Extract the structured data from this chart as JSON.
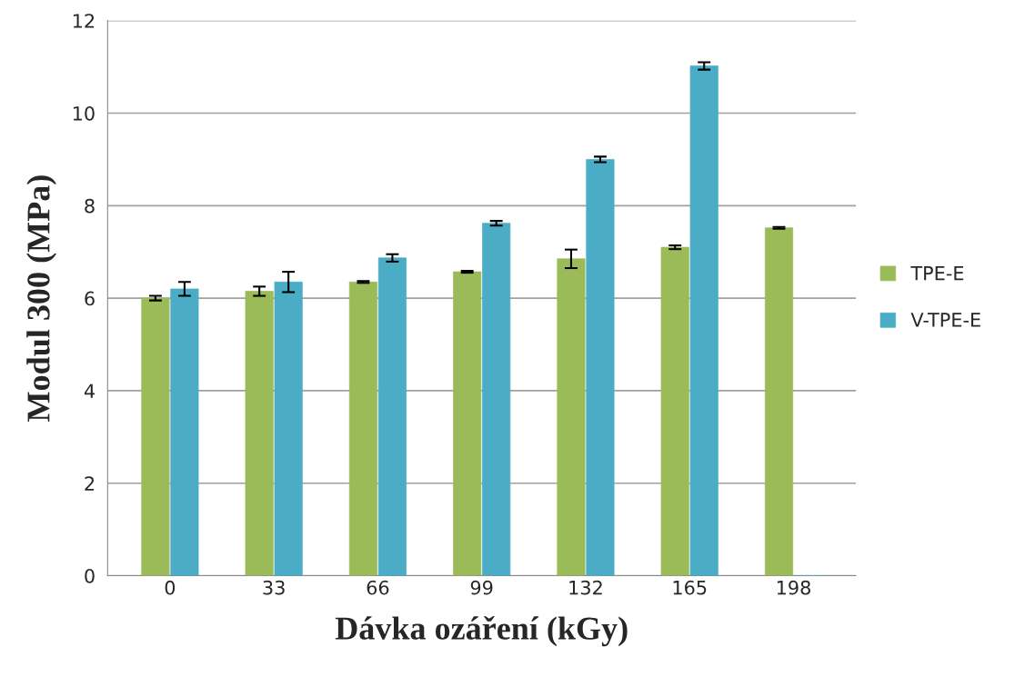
{
  "chart_data": {
    "type": "bar",
    "xlabel": "Dávka ozáření (kGy)",
    "ylabel": "Modul 300 (MPa)",
    "categories": [
      "0",
      "33",
      "66",
      "99",
      "132",
      "165",
      "198"
    ],
    "series": [
      {
        "name": "TPE-E",
        "color": "#9bbb59",
        "values": [
          6.0,
          6.15,
          6.35,
          6.57,
          6.85,
          7.1,
          7.52
        ],
        "errors": [
          0.05,
          0.1,
          0.02,
          0.02,
          0.2,
          0.04,
          0.02
        ]
      },
      {
        "name": "V-TPE-E",
        "color": "#4bacc6",
        "values": [
          6.2,
          6.35,
          6.87,
          7.62,
          9.0,
          11.02,
          0.0
        ],
        "errors": [
          0.15,
          0.22,
          0.08,
          0.05,
          0.06,
          0.08,
          null
        ]
      }
    ],
    "ylim": [
      0,
      12
    ],
    "yticks": [
      0,
      2,
      4,
      6,
      8,
      10,
      12
    ],
    "grid": "y",
    "legend": "right"
  }
}
